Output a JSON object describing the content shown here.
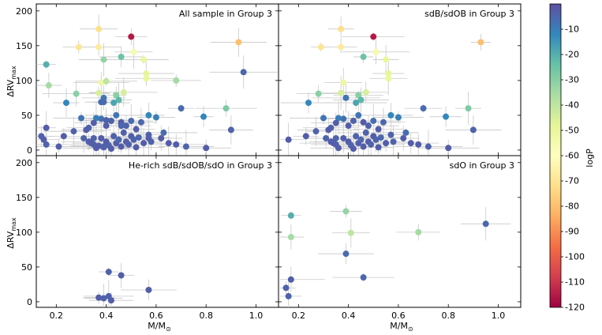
{
  "chart_data": {
    "type": "scatter",
    "xlabel": "M/M",
    "xlabel_sub": "⊙",
    "ylabel": "ΔRV",
    "ylabel_sub": "max",
    "xlim": [
      0.12,
      1.09
    ],
    "ylim": [
      -8,
      210
    ],
    "xticks": [
      "0.2",
      "0.4",
      "0.6",
      "0.8",
      "1.0"
    ],
    "yticks": [
      "0",
      "50",
      "100",
      "150",
      "200"
    ],
    "colorbar": {
      "label": "logP",
      "range": [
        -120,
        0
      ],
      "ticks": [
        "-10",
        "-20",
        "-30",
        "-40",
        "-50",
        "-60",
        "-70",
        "-80",
        "-90",
        "-100",
        "-110",
        "-120"
      ]
    },
    "panels": [
      {
        "title": "All sample in Group 3",
        "points": [
          {
            "x": 0.16,
            "y": 123,
            "logP": -20
          },
          {
            "x": 0.17,
            "y": 93,
            "logP": -35
          },
          {
            "x": 0.29,
            "y": 148,
            "logP": -70
          },
          {
            "x": 0.37,
            "y": 174,
            "logP": -72
          },
          {
            "x": 0.37,
            "y": 148,
            "logP": -68
          },
          {
            "x": 0.39,
            "y": 130,
            "logP": -32
          },
          {
            "x": 0.38,
            "y": 97,
            "logP": -52
          },
          {
            "x": 0.4,
            "y": 99,
            "logP": -40
          },
          {
            "x": 0.28,
            "y": 81,
            "logP": -30
          },
          {
            "x": 0.37,
            "y": 82,
            "logP": -45
          },
          {
            "x": 0.24,
            "y": 68,
            "logP": -12
          },
          {
            "x": 0.5,
            "y": 163,
            "logP": -115
          },
          {
            "x": 0.51,
            "y": 141,
            "logP": -55
          },
          {
            "x": 0.46,
            "y": 134,
            "logP": -25
          },
          {
            "x": 0.55,
            "y": 130,
            "logP": -50
          },
          {
            "x": 0.56,
            "y": 110,
            "logP": -48
          },
          {
            "x": 0.56,
            "y": 103,
            "logP": -50
          },
          {
            "x": 0.47,
            "y": 83,
            "logP": -45
          },
          {
            "x": 0.44,
            "y": 79,
            "logP": -30
          },
          {
            "x": 0.45,
            "y": 72,
            "logP": -22
          },
          {
            "x": 0.43,
            "y": 68,
            "logP": -18
          },
          {
            "x": 0.39,
            "y": 69,
            "logP": -6
          },
          {
            "x": 0.39,
            "y": 75,
            "logP": -8
          },
          {
            "x": 0.68,
            "y": 100,
            "logP": -35
          },
          {
            "x": 0.93,
            "y": 155,
            "logP": -80
          },
          {
            "x": 0.88,
            "y": 60,
            "logP": -28
          },
          {
            "x": 0.95,
            "y": 112,
            "logP": -5
          },
          {
            "x": 0.79,
            "y": 48,
            "logP": -12
          },
          {
            "x": 0.7,
            "y": 60,
            "logP": -6
          },
          {
            "x": 0.57,
            "y": 50,
            "logP": -12
          },
          {
            "x": 0.6,
            "y": 47,
            "logP": -10
          },
          {
            "x": 0.9,
            "y": 29,
            "logP": -4
          },
          {
            "x": 0.8,
            "y": 3,
            "logP": -3
          },
          {
            "x": 0.72,
            "y": 5,
            "logP": -4
          },
          {
            "x": 0.68,
            "y": 8,
            "logP": -3
          },
          {
            "x": 0.63,
            "y": 25,
            "logP": -6
          },
          {
            "x": 0.62,
            "y": 17,
            "logP": -3
          },
          {
            "x": 0.57,
            "y": 22,
            "logP": -4
          },
          {
            "x": 0.54,
            "y": 40,
            "logP": -5
          },
          {
            "x": 0.52,
            "y": 30,
            "logP": -3
          },
          {
            "x": 0.5,
            "y": 42,
            "logP": -6
          },
          {
            "x": 0.48,
            "y": 35,
            "logP": -4
          },
          {
            "x": 0.46,
            "y": 40,
            "logP": -3
          },
          {
            "x": 0.44,
            "y": 50,
            "logP": -8
          },
          {
            "x": 0.42,
            "y": 42,
            "logP": -4
          },
          {
            "x": 0.4,
            "y": 35,
            "logP": -3
          },
          {
            "x": 0.38,
            "y": 45,
            "logP": -7
          },
          {
            "x": 0.36,
            "y": 46,
            "logP": -10
          },
          {
            "x": 0.35,
            "y": 39,
            "logP": -3
          },
          {
            "x": 0.33,
            "y": 32,
            "logP": -4
          },
          {
            "x": 0.32,
            "y": 29,
            "logP": -3
          },
          {
            "x": 0.3,
            "y": 46,
            "logP": -8
          },
          {
            "x": 0.27,
            "y": 27,
            "logP": -4
          },
          {
            "x": 0.23,
            "y": 20,
            "logP": -3
          },
          {
            "x": 0.16,
            "y": 32,
            "logP": -3
          },
          {
            "x": 0.14,
            "y": 20,
            "logP": -4
          },
          {
            "x": 0.15,
            "y": 15,
            "logP": -3
          },
          {
            "x": 0.16,
            "y": 8,
            "logP": -4
          },
          {
            "x": 0.21,
            "y": 5,
            "logP": -3
          },
          {
            "x": 0.31,
            "y": 17,
            "logP": -4
          },
          {
            "x": 0.33,
            "y": 12,
            "logP": -3
          },
          {
            "x": 0.35,
            "y": 8,
            "logP": -4
          },
          {
            "x": 0.36,
            "y": 3,
            "logP": -3
          },
          {
            "x": 0.37,
            "y": 6,
            "logP": -5
          },
          {
            "x": 0.38,
            "y": 17,
            "logP": -3
          },
          {
            "x": 0.39,
            "y": 4,
            "logP": -4
          },
          {
            "x": 0.4,
            "y": 12,
            "logP": -3
          },
          {
            "x": 0.41,
            "y": 7,
            "logP": -4
          },
          {
            "x": 0.42,
            "y": 2,
            "logP": -3
          },
          {
            "x": 0.43,
            "y": 20,
            "logP": -4
          },
          {
            "x": 0.44,
            "y": 10,
            "logP": -3
          },
          {
            "x": 0.45,
            "y": 15,
            "logP": -5
          },
          {
            "x": 0.46,
            "y": 5,
            "logP": -3
          },
          {
            "x": 0.47,
            "y": 25,
            "logP": -4
          },
          {
            "x": 0.48,
            "y": 12,
            "logP": -3
          },
          {
            "x": 0.49,
            "y": 8,
            "logP": -4
          },
          {
            "x": 0.5,
            "y": 20,
            "logP": -3
          },
          {
            "x": 0.51,
            "y": 15,
            "logP": -4
          },
          {
            "x": 0.52,
            "y": 4,
            "logP": -3
          },
          {
            "x": 0.53,
            "y": 18,
            "logP": -5
          },
          {
            "x": 0.55,
            "y": 10,
            "logP": -3
          },
          {
            "x": 0.58,
            "y": 12,
            "logP": -4
          },
          {
            "x": 0.65,
            "y": 10,
            "logP": -3
          },
          {
            "x": 0.35,
            "y": 17,
            "logP": -4
          },
          {
            "x": 0.34,
            "y": 10,
            "logP": -3
          },
          {
            "x": 0.4,
            "y": 43,
            "logP": -4
          },
          {
            "x": 0.46,
            "y": 38,
            "logP": -3
          },
          {
            "x": 0.37,
            "y": 6,
            "logP": -3
          },
          {
            "x": 0.39,
            "y": 5,
            "logP": -4
          },
          {
            "x": 0.57,
            "y": 17,
            "logP": -3
          },
          {
            "x": 0.38,
            "y": 69,
            "logP": -6
          },
          {
            "x": 0.46,
            "y": 35,
            "logP": -5
          }
        ]
      },
      {
        "title": "sdB/sdOB in Group 3",
        "points": [
          {
            "x": 0.29,
            "y": 148,
            "logP": -70
          },
          {
            "x": 0.37,
            "y": 174,
            "logP": -72
          },
          {
            "x": 0.37,
            "y": 148,
            "logP": -68
          },
          {
            "x": 0.38,
            "y": 97,
            "logP": -52
          },
          {
            "x": 0.28,
            "y": 81,
            "logP": -30
          },
          {
            "x": 0.37,
            "y": 82,
            "logP": -45
          },
          {
            "x": 0.24,
            "y": 68,
            "logP": -12
          },
          {
            "x": 0.5,
            "y": 163,
            "logP": -115
          },
          {
            "x": 0.51,
            "y": 141,
            "logP": -55
          },
          {
            "x": 0.46,
            "y": 134,
            "logP": -25
          },
          {
            "x": 0.55,
            "y": 130,
            "logP": -50
          },
          {
            "x": 0.56,
            "y": 110,
            "logP": -48
          },
          {
            "x": 0.56,
            "y": 103,
            "logP": -50
          },
          {
            "x": 0.47,
            "y": 83,
            "logP": -45
          },
          {
            "x": 0.44,
            "y": 79,
            "logP": -30
          },
          {
            "x": 0.45,
            "y": 72,
            "logP": -22
          },
          {
            "x": 0.43,
            "y": 68,
            "logP": -18
          },
          {
            "x": 0.39,
            "y": 75,
            "logP": -8
          },
          {
            "x": 0.93,
            "y": 155,
            "logP": -80
          },
          {
            "x": 0.88,
            "y": 60,
            "logP": -28
          },
          {
            "x": 0.79,
            "y": 48,
            "logP": -12
          },
          {
            "x": 0.7,
            "y": 60,
            "logP": -6
          },
          {
            "x": 0.57,
            "y": 50,
            "logP": -12
          },
          {
            "x": 0.6,
            "y": 47,
            "logP": -10
          },
          {
            "x": 0.9,
            "y": 29,
            "logP": -4
          },
          {
            "x": 0.8,
            "y": 3,
            "logP": -3
          },
          {
            "x": 0.72,
            "y": 5,
            "logP": -4
          },
          {
            "x": 0.68,
            "y": 8,
            "logP": -3
          },
          {
            "x": 0.63,
            "y": 25,
            "logP": -6
          },
          {
            "x": 0.62,
            "y": 17,
            "logP": -3
          },
          {
            "x": 0.57,
            "y": 22,
            "logP": -4
          },
          {
            "x": 0.54,
            "y": 40,
            "logP": -5
          },
          {
            "x": 0.52,
            "y": 30,
            "logP": -3
          },
          {
            "x": 0.5,
            "y": 42,
            "logP": -6
          },
          {
            "x": 0.48,
            "y": 35,
            "logP": -4
          },
          {
            "x": 0.46,
            "y": 40,
            "logP": -3
          },
          {
            "x": 0.44,
            "y": 50,
            "logP": -8
          },
          {
            "x": 0.42,
            "y": 42,
            "logP": -4
          },
          {
            "x": 0.4,
            "y": 35,
            "logP": -3
          },
          {
            "x": 0.38,
            "y": 45,
            "logP": -7
          },
          {
            "x": 0.36,
            "y": 46,
            "logP": -10
          },
          {
            "x": 0.35,
            "y": 39,
            "logP": -3
          },
          {
            "x": 0.33,
            "y": 32,
            "logP": -4
          },
          {
            "x": 0.32,
            "y": 29,
            "logP": -3
          },
          {
            "x": 0.3,
            "y": 46,
            "logP": -8
          },
          {
            "x": 0.27,
            "y": 27,
            "logP": -4
          },
          {
            "x": 0.23,
            "y": 20,
            "logP": -3
          },
          {
            "x": 0.16,
            "y": 15,
            "logP": -3
          },
          {
            "x": 0.31,
            "y": 17,
            "logP": -4
          },
          {
            "x": 0.33,
            "y": 12,
            "logP": -3
          },
          {
            "x": 0.35,
            "y": 8,
            "logP": -4
          },
          {
            "x": 0.36,
            "y": 3,
            "logP": -3
          },
          {
            "x": 0.38,
            "y": 17,
            "logP": -3
          },
          {
            "x": 0.4,
            "y": 12,
            "logP": -3
          },
          {
            "x": 0.41,
            "y": 7,
            "logP": -4
          },
          {
            "x": 0.42,
            "y": 2,
            "logP": -3
          },
          {
            "x": 0.43,
            "y": 20,
            "logP": -4
          },
          {
            "x": 0.44,
            "y": 10,
            "logP": -3
          },
          {
            "x": 0.45,
            "y": 15,
            "logP": -5
          },
          {
            "x": 0.46,
            "y": 5,
            "logP": -3
          },
          {
            "x": 0.47,
            "y": 25,
            "logP": -4
          },
          {
            "x": 0.48,
            "y": 12,
            "logP": -3
          },
          {
            "x": 0.49,
            "y": 8,
            "logP": -4
          },
          {
            "x": 0.5,
            "y": 20,
            "logP": -3
          },
          {
            "x": 0.51,
            "y": 15,
            "logP": -4
          },
          {
            "x": 0.52,
            "y": 4,
            "logP": -3
          },
          {
            "x": 0.53,
            "y": 18,
            "logP": -5
          },
          {
            "x": 0.55,
            "y": 10,
            "logP": -3
          },
          {
            "x": 0.58,
            "y": 12,
            "logP": -4
          },
          {
            "x": 0.65,
            "y": 10,
            "logP": -3
          },
          {
            "x": 0.35,
            "y": 17,
            "logP": -4
          },
          {
            "x": 0.34,
            "y": 10,
            "logP": -3
          }
        ]
      },
      {
        "title": "He-rich sdB/sdOB/sdO in Group 3",
        "points": [
          {
            "x": 0.41,
            "y": 43,
            "logP": -4
          },
          {
            "x": 0.46,
            "y": 38,
            "logP": -3
          },
          {
            "x": 0.37,
            "y": 6,
            "logP": -3
          },
          {
            "x": 0.39,
            "y": 5,
            "logP": -4
          },
          {
            "x": 0.42,
            "y": 2,
            "logP": -3
          },
          {
            "x": 0.41,
            "y": 8,
            "logP": -4
          },
          {
            "x": 0.57,
            "y": 17,
            "logP": -3
          }
        ]
      },
      {
        "title": "sdO in Group 3",
        "points": [
          {
            "x": 0.17,
            "y": 124,
            "logP": -20
          },
          {
            "x": 0.17,
            "y": 93,
            "logP": -35
          },
          {
            "x": 0.39,
            "y": 130,
            "logP": -32
          },
          {
            "x": 0.41,
            "y": 99,
            "logP": -40
          },
          {
            "x": 0.68,
            "y": 100,
            "logP": -35
          },
          {
            "x": 0.95,
            "y": 112,
            "logP": -5
          },
          {
            "x": 0.39,
            "y": 69,
            "logP": -6
          },
          {
            "x": 0.46,
            "y": 35,
            "logP": -5
          },
          {
            "x": 0.17,
            "y": 32,
            "logP": -3
          },
          {
            "x": 0.15,
            "y": 20,
            "logP": -4
          },
          {
            "x": 0.16,
            "y": 8,
            "logP": -4
          }
        ]
      }
    ]
  }
}
